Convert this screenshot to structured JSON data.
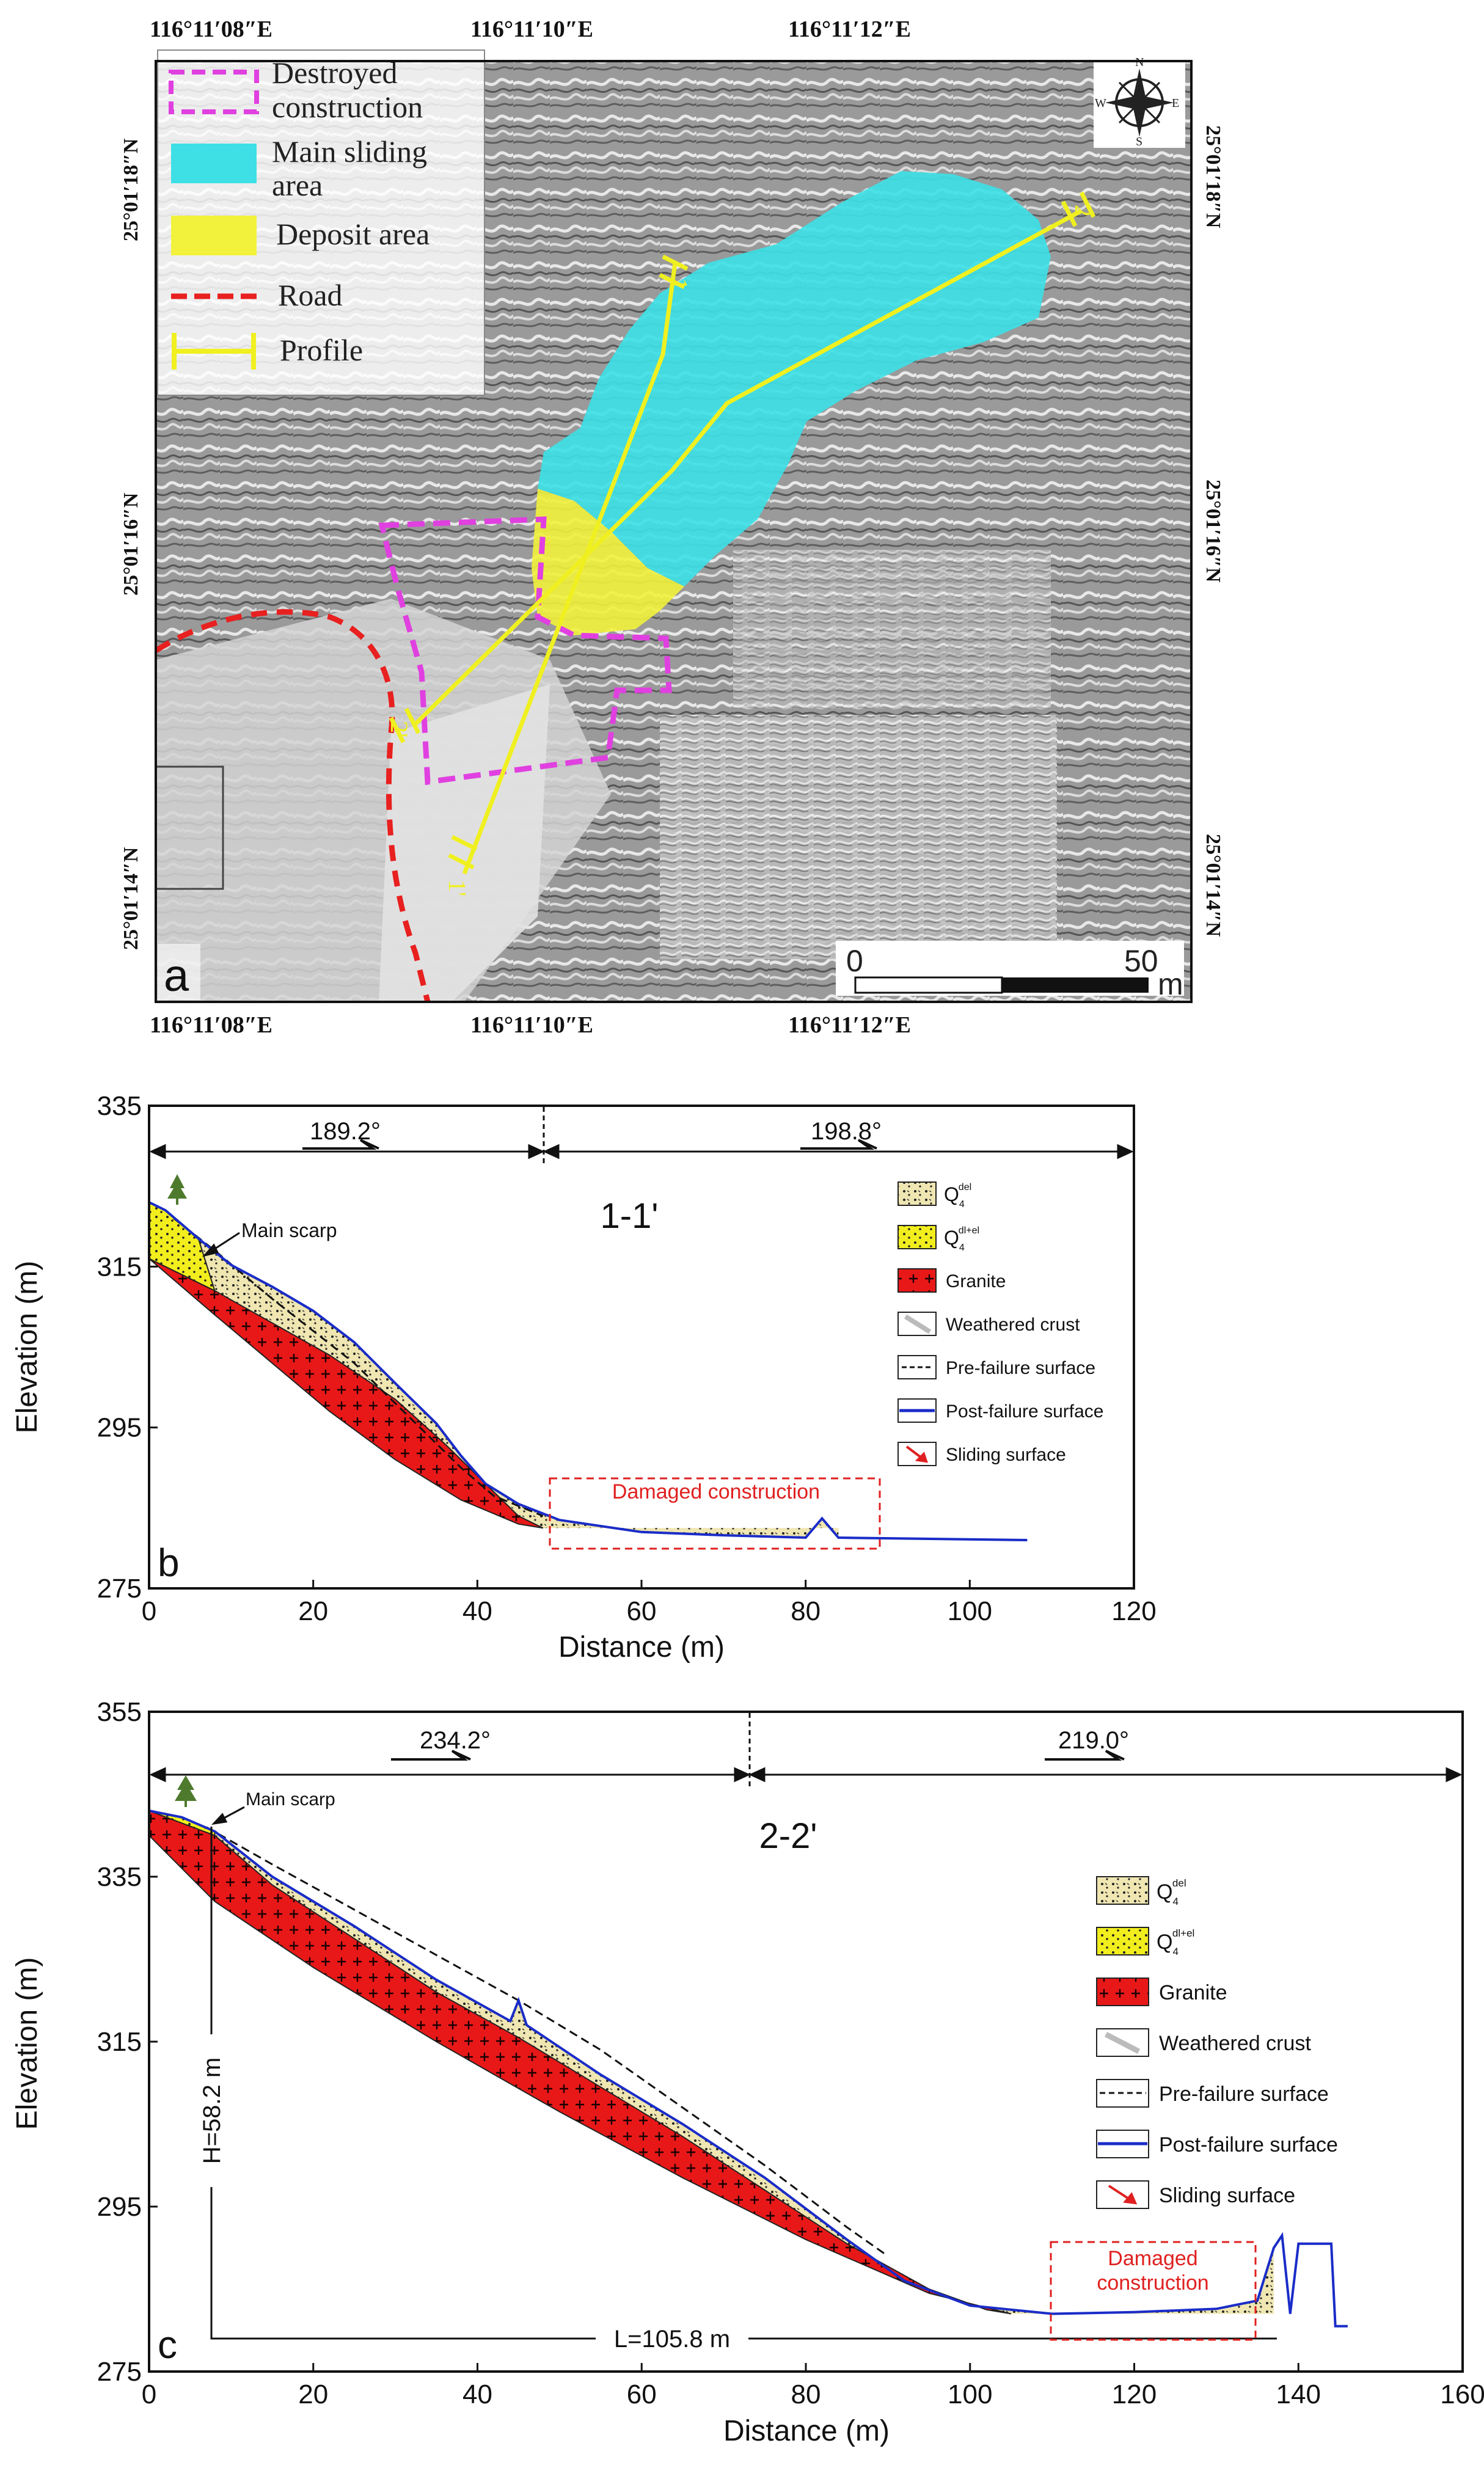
{
  "panel_a": {
    "label": "a",
    "coords": {
      "top_lon": [
        "116°11′08″E",
        "116°11′10″E",
        "116°11′12″E"
      ],
      "bottom_lon": [
        "116°11′08″E",
        "116°11′10″E",
        "116°11′12″E"
      ],
      "left_lat": [
        "25°01′18″N",
        "25°01′16″N",
        "25°01′14″N"
      ],
      "right_lat": [
        "25°01′18″N",
        "25°01′16″N",
        "25°01′14″N"
      ]
    },
    "legend": {
      "destroyed_line1": "Destroyed",
      "destroyed_line2": "construction",
      "sliding_line1": "Main sliding",
      "sliding_line2": "area",
      "deposit": "Deposit area",
      "road": "Road",
      "profile": "Profile"
    },
    "compass": {
      "n": "N",
      "s": "S",
      "e": "E",
      "w": "W"
    },
    "profile_labels": {
      "p1_end": "1",
      "p1_start": "1'",
      "p2_end": "2",
      "p2_start": "2'"
    },
    "scale": {
      "zero": "0",
      "fifty": "50",
      "unit": "m"
    },
    "colors": {
      "sliding": "#3ee0e6",
      "deposit": "#f2f23c",
      "road": "#e82020",
      "destroyed": "#e040e0",
      "profile": "#f0f020"
    }
  },
  "panel_b": {
    "label": "b",
    "title": "1-1'",
    "xlabel": "Distance (m)",
    "ylabel": "Elevation (m)",
    "x_ticks": [
      "0",
      "20",
      "40",
      "60",
      "80",
      "100",
      "120"
    ],
    "y_ticks": [
      "335",
      "315",
      "295",
      "275"
    ],
    "xlim": [
      0,
      120
    ],
    "ylim": [
      275,
      335
    ],
    "dir1": "189.2°",
    "dir2": "198.8°",
    "scarp": "Main scarp",
    "damaged": "Damaged construction",
    "legend": {
      "q_del": "Q",
      "q_del_sub": "4",
      "q_del_sup": "del",
      "q_dlel": "Q",
      "q_dlel_sub": "4",
      "q_dlel_sup": "dl+el",
      "granite": "Granite",
      "weathered": "Weathered crust",
      "pre": "Pre-failure surface",
      "post": "Post-failure surface",
      "sliding": "Sliding surface"
    },
    "profile": {
      "post_failure": [
        [
          0,
          323
        ],
        [
          2,
          322
        ],
        [
          6,
          318.5
        ],
        [
          10,
          315.2
        ],
        [
          15,
          312.5
        ],
        [
          20,
          309.5
        ],
        [
          25,
          305.6
        ],
        [
          30,
          300.5
        ],
        [
          35,
          295.5
        ],
        [
          38,
          291.5
        ],
        [
          41,
          288
        ],
        [
          45,
          285.5
        ],
        [
          50,
          283.5
        ],
        [
          60,
          282
        ],
        [
          70,
          281.6
        ],
        [
          80,
          281.3
        ],
        [
          82,
          283.7
        ],
        [
          84,
          281.3
        ],
        [
          107,
          281
        ]
      ],
      "pre_failure": [
        [
          3,
          321
        ],
        [
          8,
          317
        ],
        [
          15,
          311
        ],
        [
          25,
          303
        ],
        [
          32,
          296
        ],
        [
          38,
          290
        ],
        [
          42,
          286.5
        ],
        [
          48,
          284
        ]
      ],
      "granite_top": [
        [
          0,
          316
        ],
        [
          8,
          312
        ],
        [
          15,
          308
        ],
        [
          22,
          304
        ],
        [
          30,
          298.5
        ],
        [
          36,
          293
        ],
        [
          41,
          288
        ],
        [
          45,
          284
        ]
      ],
      "granite_bottom": [
        [
          0,
          316
        ],
        [
          8,
          309
        ],
        [
          15,
          303
        ],
        [
          22,
          297
        ],
        [
          30,
          291
        ],
        [
          38,
          286
        ],
        [
          45,
          283
        ],
        [
          48,
          282.5
        ]
      ]
    }
  },
  "panel_c": {
    "label": "c",
    "title": "2-2'",
    "xlabel": "Distance (m)",
    "ylabel": "Elevation (m)",
    "x_ticks": [
      "0",
      "20",
      "40",
      "60",
      "80",
      "100",
      "120",
      "140",
      "160"
    ],
    "y_ticks": [
      "355",
      "335",
      "315",
      "295",
      "275"
    ],
    "xlim": [
      0,
      160
    ],
    "ylim": [
      275,
      355
    ],
    "dir1": "234.2°",
    "dir2": "219.0°",
    "scarp": "Main scarp",
    "damaged_line1": "Damaged",
    "damaged_line2": "construction",
    "h_label": "H=58.2 m",
    "l_label": "L=105.8 m",
    "legend": {
      "q_del": "Q",
      "q_del_sub": "4",
      "q_del_sup": "del",
      "q_dlel": "Q",
      "q_dlel_sub": "4",
      "q_dlel_sup": "dl+el",
      "granite": "Granite",
      "weathered": "Weathered crust",
      "pre": "Pre-failure surface",
      "post": "Post-failure surface",
      "sliding": "Sliding surface"
    },
    "profile": {
      "post_failure": [
        [
          0,
          343
        ],
        [
          4,
          342.2
        ],
        [
          8,
          340.5
        ],
        [
          15,
          335
        ],
        [
          25,
          329
        ],
        [
          35,
          322.5
        ],
        [
          44,
          317.5
        ],
        [
          45,
          320
        ],
        [
          46,
          317
        ],
        [
          55,
          311
        ],
        [
          65,
          305
        ],
        [
          75,
          298.5
        ],
        [
          85,
          291
        ],
        [
          92,
          286
        ],
        [
          100,
          283
        ],
        [
          110,
          282
        ],
        [
          120,
          282.2
        ],
        [
          130,
          282.6
        ],
        [
          135,
          283.6
        ],
        [
          137,
          290
        ],
        [
          138,
          291.5
        ],
        [
          139,
          282
        ],
        [
          140,
          290.5
        ],
        [
          144,
          290.5
        ],
        [
          144.5,
          280.5
        ],
        [
          146,
          280.5
        ]
      ],
      "pre_failure": [
        [
          7,
          341
        ],
        [
          15,
          336.5
        ],
        [
          25,
          331
        ],
        [
          35,
          325.5
        ],
        [
          45,
          320
        ],
        [
          55,
          314
        ],
        [
          65,
          307
        ],
        [
          75,
          300
        ],
        [
          85,
          292.5
        ],
        [
          90,
          289
        ]
      ],
      "granite_top": [
        [
          0,
          343
        ],
        [
          8,
          340
        ],
        [
          15,
          334
        ],
        [
          25,
          327.5
        ],
        [
          35,
          321
        ],
        [
          45,
          315.5
        ],
        [
          55,
          309.5
        ],
        [
          65,
          303.5
        ],
        [
          75,
          297
        ],
        [
          85,
          290.5
        ],
        [
          95,
          285
        ],
        [
          102,
          282.5
        ]
      ],
      "granite_bottom": [
        [
          0,
          343
        ],
        [
          0,
          340
        ],
        [
          8,
          332
        ],
        [
          20,
          324
        ],
        [
          35,
          315
        ],
        [
          50,
          306.5
        ],
        [
          65,
          298.5
        ],
        [
          80,
          291
        ],
        [
          95,
          284.5
        ],
        [
          105,
          282
        ]
      ]
    }
  }
}
